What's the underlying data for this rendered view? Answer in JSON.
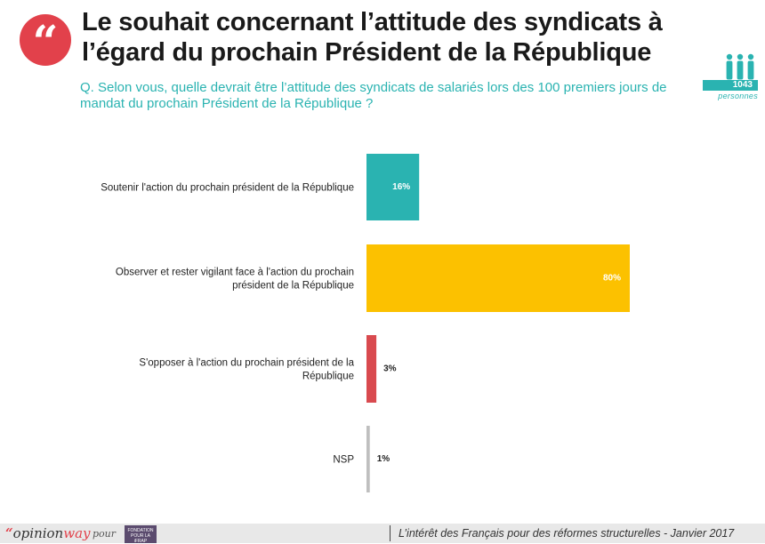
{
  "header": {
    "title": "Le souhait concernant l’attitude des syndicats à l’égard du prochain Président de la République",
    "question": "Q. Selon vous, quelle devrait être l’attitude des syndicats de salariés lors des 100 premiers jours de mandat du prochain Président de la République ?",
    "quote_glyph": "“",
    "sample_count": "1043",
    "sample_unit": "personnes"
  },
  "colors": {
    "teal": "#2ab3b1",
    "yellow": "#fcc100",
    "red": "#d94a4f",
    "grey": "#bfbfbf",
    "accent": "#e2414b"
  },
  "icons": [
    "quote-icon",
    "people-icon"
  ],
  "chart_data": {
    "type": "bar",
    "orientation": "horizontal",
    "categories": [
      "Soutenir l'action du prochain président de la République",
      "Observer et rester vigilant face à l'action du prochain président de la République",
      "S'opposer à l'action du prochain président de la République",
      "NSP"
    ],
    "values": [
      16,
      80,
      3,
      1
    ],
    "labels": [
      "16%",
      "80%",
      "3%",
      "1%"
    ],
    "unit": "%",
    "bar_colors": [
      "#2ab3b1",
      "#fcc100",
      "#d94a4f",
      "#bfbfbf"
    ],
    "label_inside": [
      true,
      true,
      false,
      false
    ],
    "xlim": [
      0,
      100
    ],
    "grid": false,
    "title": "",
    "xlabel": "",
    "ylabel": ""
  },
  "footer": {
    "brand_quote": "“",
    "brand_opinion": "opinion",
    "brand_way": "way",
    "pour": "pour",
    "partner_line1": "FONDATION POUR LA",
    "partner_line2": "iFRAP",
    "caption": "L’intérêt des Français pour des réformes structurelles - Janvier 2017"
  }
}
